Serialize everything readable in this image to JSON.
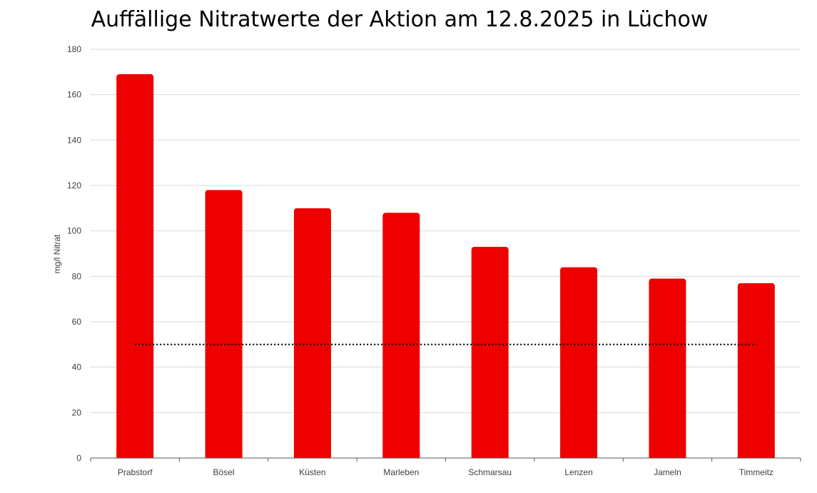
{
  "chart_data": {
    "type": "bar",
    "title": "Auffällige Nitratwerte der Aktion am 12.8.2025 in Lüchow",
    "xlabel": "",
    "ylabel": "mg/l Nitrat",
    "categories": [
      "Prabstorf",
      "Bösel",
      "Küsten",
      "Marleben",
      "Schmarsau",
      "Lenzen",
      "Jameln",
      "Timmeitz"
    ],
    "series": [
      {
        "values": [
          169,
          118,
          110,
          108,
          93,
          84,
          79,
          77
        ]
      }
    ],
    "reference_line": {
      "value": 50,
      "style": "dotted"
    },
    "ylim": [
      0,
      180
    ],
    "yticks": [
      0,
      20,
      40,
      60,
      80,
      100,
      120,
      140,
      160,
      180
    ],
    "grid": true,
    "legend": "none",
    "colors": {
      "bar": "#ee0000",
      "grid": "#d9d9d9",
      "axis": "#595959",
      "reference": "#000000"
    }
  }
}
